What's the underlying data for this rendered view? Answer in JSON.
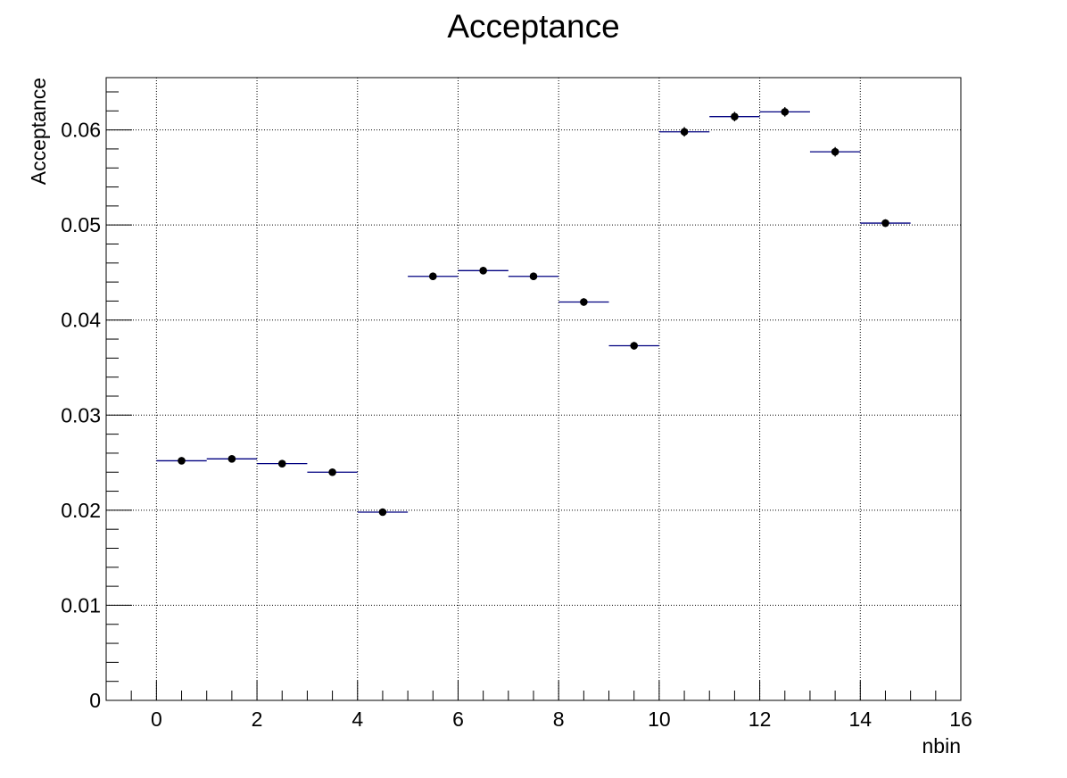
{
  "colors": {
    "background": "#ffffff",
    "frame": "#000000",
    "grid": "#000000",
    "marker": "#000000",
    "bin_line": "#000080"
  },
  "chart_data": {
    "type": "scatter",
    "title": "Acceptance",
    "xlabel": "nbin",
    "ylabel": "Acceptance",
    "xlim": [
      -1,
      16
    ],
    "ylim": [
      0,
      0.0655
    ],
    "grid": true,
    "legend": "none",
    "x_ticks": [
      "0",
      "2",
      "4",
      "6",
      "8",
      "10",
      "12",
      "14",
      "16"
    ],
    "y_ticks": [
      "0",
      "0.01",
      "0.02",
      "0.03",
      "0.04",
      "0.05",
      "0.06"
    ],
    "bin_width": 1,
    "x": [
      0.5,
      1.5,
      2.5,
      3.5,
      4.5,
      5.5,
      6.5,
      7.5,
      8.5,
      9.5,
      10.5,
      11.5,
      12.5,
      13.5,
      14.5
    ],
    "y": [
      0.0252,
      0.0254,
      0.0249,
      0.024,
      0.0198,
      0.0446,
      0.0452,
      0.0446,
      0.0419,
      0.0373,
      0.0598,
      0.0614,
      0.0619,
      0.0577,
      0.0502
    ],
    "y_err": [
      0.0003,
      0.0003,
      0.0003,
      0.0003,
      0.0003,
      0.0004,
      0.0004,
      0.0004,
      0.0004,
      0.0004,
      0.0005,
      0.0005,
      0.0005,
      0.0005,
      0.0004
    ]
  }
}
